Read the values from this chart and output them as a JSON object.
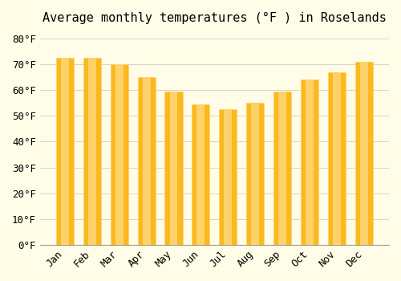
{
  "title": "Average monthly temperatures (°F ) in Roselands",
  "months": [
    "Jan",
    "Feb",
    "Mar",
    "Apr",
    "May",
    "Jun",
    "Jul",
    "Aug",
    "Sep",
    "Oct",
    "Nov",
    "Dec"
  ],
  "values": [
    72.5,
    72.5,
    70.0,
    65.0,
    59.5,
    54.5,
    52.5,
    55.0,
    59.5,
    64.0,
    67.0,
    71.0
  ],
  "bar_color_main": "#FDB81E",
  "bar_color_light": "#FDD26A",
  "background_color": "#FFFDE7",
  "grid_color": "#CCCCCC",
  "title_fontsize": 11,
  "tick_fontsize": 9,
  "ylabel_ticks": [
    0,
    10,
    20,
    30,
    40,
    50,
    60,
    70,
    80
  ],
  "ylim": [
    0,
    83
  ]
}
